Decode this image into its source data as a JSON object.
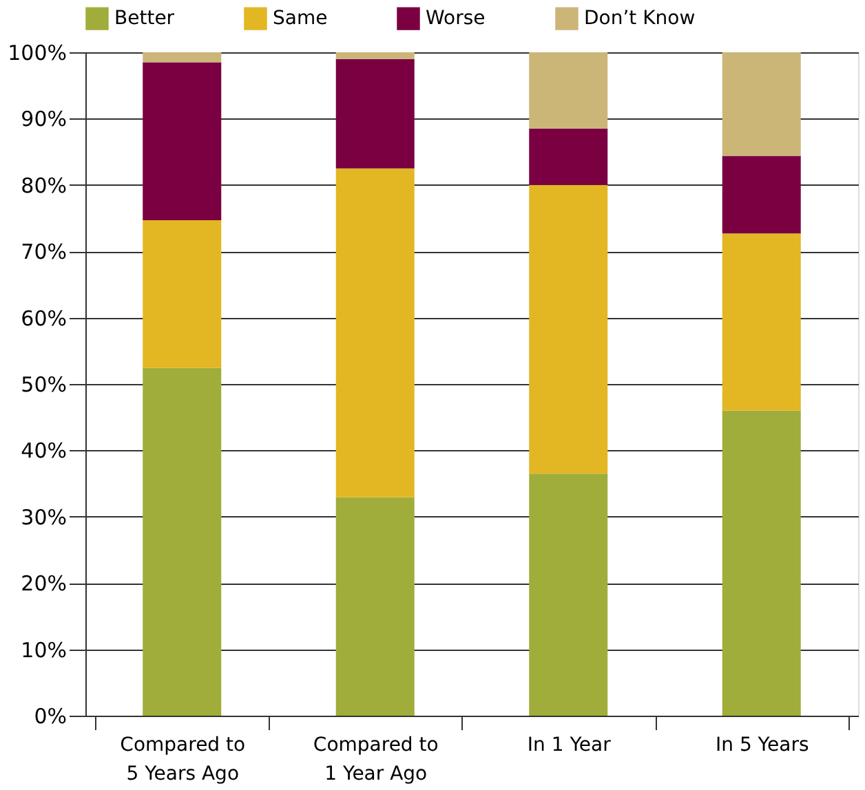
{
  "chart_data": {
    "type": "bar",
    "stacked": true,
    "categories": [
      "Compared to\n5 Years Ago",
      "Compared to\n1 Year Ago",
      "In 1 Year",
      "In 5 Years"
    ],
    "series": [
      {
        "name": "Better",
        "color": "#a0ad3b",
        "values": [
          52.4,
          32.9,
          36.5,
          46.0
        ]
      },
      {
        "name": "Same",
        "color": "#e3b623",
        "values": [
          22.3,
          49.6,
          43.5,
          26.7
        ]
      },
      {
        "name": "Worse",
        "color": "#7a0042",
        "values": [
          23.8,
          16.5,
          8.5,
          11.7
        ]
      },
      {
        "name": "Don’t Know",
        "color": "#cbb678",
        "values": [
          1.5,
          1.0,
          11.5,
          15.6
        ]
      }
    ],
    "ylim": [
      0,
      100
    ],
    "yticks": [
      {
        "value": 0,
        "label": "0%"
      },
      {
        "value": 10,
        "label": "10%"
      },
      {
        "value": 20,
        "label": "20%"
      },
      {
        "value": 30,
        "label": "30%"
      },
      {
        "value": 40,
        "label": "40%"
      },
      {
        "value": 50,
        "label": "50%"
      },
      {
        "value": 60,
        "label": "60%"
      },
      {
        "value": 70,
        "label": "70%"
      },
      {
        "value": 80,
        "label": "80%"
      },
      {
        "value": 90,
        "label": "90%"
      },
      {
        "value": 100,
        "label": "100%"
      }
    ],
    "grid": "y",
    "legend": "top"
  }
}
